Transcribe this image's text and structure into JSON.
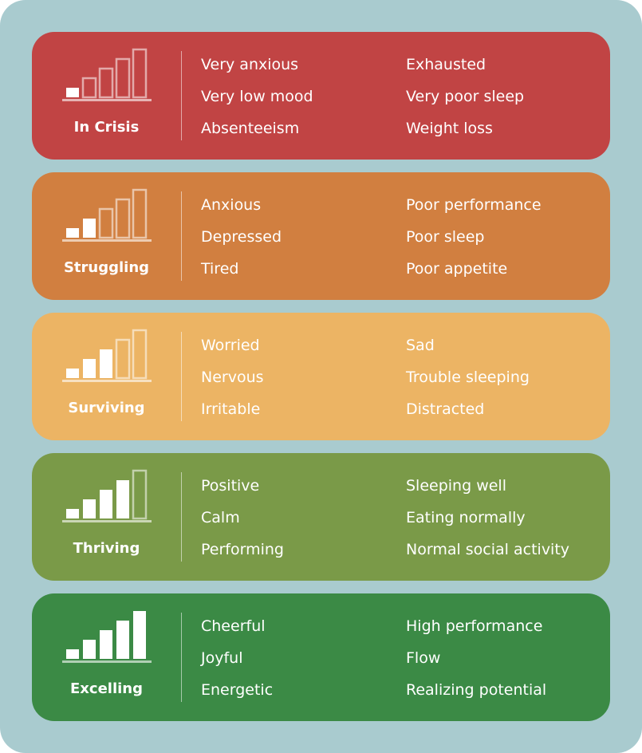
{
  "levels": [
    {
      "name": "In Crisis",
      "color": "#c14444",
      "filled_bars": 1,
      "items_left": [
        "Very anxious",
        "Very low mood",
        "Absenteeism"
      ],
      "items_right": [
        "Exhausted",
        "Very poor sleep",
        "Weight loss"
      ]
    },
    {
      "name": "Struggling",
      "color": "#d17f40",
      "filled_bars": 2,
      "items_left": [
        "Anxious",
        "Depressed",
        "Tired"
      ],
      "items_right": [
        "Poor performance",
        "Poor sleep",
        "Poor appetite"
      ]
    },
    {
      "name": "Surviving",
      "color": "#ecb464",
      "filled_bars": 3,
      "items_left": [
        "Worried",
        "Nervous",
        "Irritable"
      ],
      "items_right": [
        "Sad",
        "Trouble sleeping",
        "Distracted"
      ]
    },
    {
      "name": "Thriving",
      "color": "#7a9a48",
      "filled_bars": 4,
      "items_left": [
        "Positive",
        "Calm",
        "Performing"
      ],
      "items_right": [
        "Sleeping well",
        "Eating normally",
        "Normal social activity"
      ]
    },
    {
      "name": "Excelling",
      "color": "#3b8a45",
      "filled_bars": 5,
      "items_left": [
        "Cheerful",
        "Joyful",
        "Energetic"
      ],
      "items_right": [
        "High performance",
        "Flow",
        "Realizing potential"
      ]
    }
  ],
  "meter_total_bars": 5,
  "background_color": "#a9cbcf"
}
